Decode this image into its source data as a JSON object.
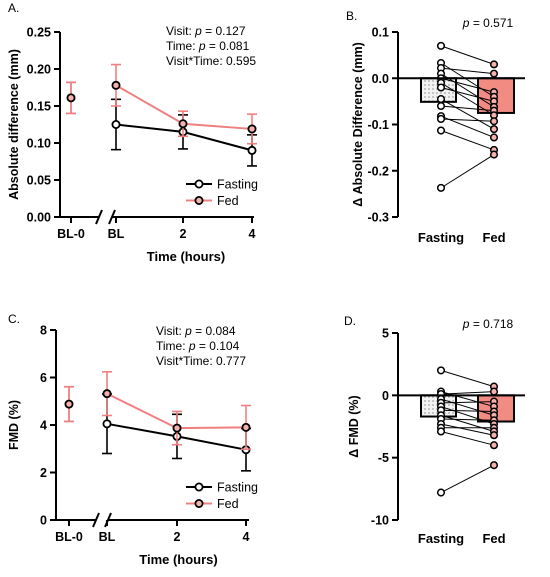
{
  "chart_data": [
    {
      "panel": "A.",
      "type": "line",
      "ylabel": "Absolute difference (mm)",
      "xlabel": "Time (hours)",
      "ylim": [
        0,
        0.25
      ],
      "yticks": [
        "0.00",
        "0.05",
        "0.10",
        "0.15",
        "0.20",
        "0.25"
      ],
      "xticks": [
        "BL-0",
        "BL",
        "2",
        "4"
      ],
      "axis_break": "between BL-0 and BL",
      "stats": [
        "Visit: p = 0.127",
        "Time: p = 0.081",
        "Visit*Time: 0.595"
      ],
      "legend": {
        "position": "bottom-right",
        "entries": [
          "Fasting",
          "Fed"
        ]
      },
      "baseline": {
        "x": "BL-0",
        "value": 0.161,
        "err": 0.021,
        "series": "Fed"
      },
      "series": [
        {
          "name": "Fasting",
          "color": "#000000",
          "x": [
            "BL",
            "2",
            "4"
          ],
          "values": [
            0.125,
            0.115,
            0.09
          ],
          "err": [
            0.034,
            0.023,
            0.021
          ]
        },
        {
          "name": "Fed",
          "color": "#f08080",
          "x": [
            "BL",
            "2",
            "4"
          ],
          "values": [
            0.178,
            0.126,
            0.119
          ],
          "err": [
            0.028,
            0.017,
            0.02
          ]
        }
      ]
    },
    {
      "panel": "B.",
      "type": "bar",
      "ylabel": "Δ Absolute Difference (mm)",
      "ylim": [
        -0.3,
        0.1
      ],
      "yticks": [
        "0.1",
        "0.0",
        "-0.1",
        "-0.2",
        "-0.3"
      ],
      "categories": [
        "Fasting",
        "Fed"
      ],
      "values": [
        -0.051,
        -0.075
      ],
      "stats": [
        "p = 0.571"
      ],
      "individual_points": {
        "Fasting": [
          0.07,
          0.033,
          0.022,
          0.01,
          0.0,
          -0.01,
          -0.02,
          -0.045,
          -0.06,
          -0.082,
          -0.088,
          -0.113,
          -0.237
        ],
        "Fed": [
          0.03,
          0.01,
          -0.03,
          -0.04,
          -0.05,
          -0.062,
          -0.07,
          -0.08,
          -0.093,
          -0.11,
          -0.128,
          -0.155,
          -0.165
        ]
      }
    },
    {
      "panel": "C.",
      "type": "line",
      "ylabel": "FMD (%)",
      "xlabel": "Time (hours)",
      "ylim": [
        0,
        8
      ],
      "yticks": [
        "0",
        "2",
        "4",
        "6",
        "8"
      ],
      "xticks": [
        "BL-0",
        "BL",
        "2",
        "4"
      ],
      "axis_break": "between BL-0 and BL",
      "stats": [
        "Visit: p = 0.084",
        "Time: p = 0.104",
        "Visit*Time: 0.777"
      ],
      "legend": {
        "position": "bottom-right",
        "entries": [
          "Fasting",
          "Fed"
        ]
      },
      "baseline": {
        "x": "BL-0",
        "value": 4.88,
        "err": 0.73,
        "series": "Fed"
      },
      "series": [
        {
          "name": "Fasting",
          "color": "#000000",
          "x": [
            "BL",
            "2",
            "4"
          ],
          "values": [
            4.05,
            3.52,
            2.96
          ],
          "err": [
            1.25,
            0.93,
            0.89
          ]
        },
        {
          "name": "Fed",
          "color": "#f08080",
          "x": [
            "BL",
            "2",
            "4"
          ],
          "values": [
            5.32,
            3.87,
            3.9
          ],
          "err": [
            0.92,
            0.7,
            0.92
          ]
        }
      ]
    },
    {
      "panel": "D.",
      "type": "bar",
      "ylabel": "Δ FMD (%)",
      "ylim": [
        -10,
        5
      ],
      "yticks": [
        "5",
        "0",
        "-5",
        "-10"
      ],
      "categories": [
        "Fasting",
        "Fed"
      ],
      "values": [
        -1.7,
        -2.1
      ],
      "stats": [
        "p = 0.718"
      ],
      "individual_points": {
        "Fasting": [
          2.0,
          0.3,
          0.1,
          -0.3,
          -0.6,
          -0.9,
          -1.2,
          -1.6,
          -1.9,
          -2.3,
          -2.6,
          -2.9,
          -7.8
        ],
        "Fed": [
          0.7,
          0.3,
          -0.5,
          -0.9,
          -1.3,
          -1.6,
          -2.0,
          -2.3,
          -2.6,
          -2.9,
          -3.2,
          -4.0,
          -5.6
        ]
      }
    }
  ],
  "colors": {
    "fed": "#f08080",
    "fed_fill": "#f28b82",
    "fasting": "#000000",
    "fasting_fill": "#f2f2f2",
    "fed_point": "#f6b1ad"
  }
}
